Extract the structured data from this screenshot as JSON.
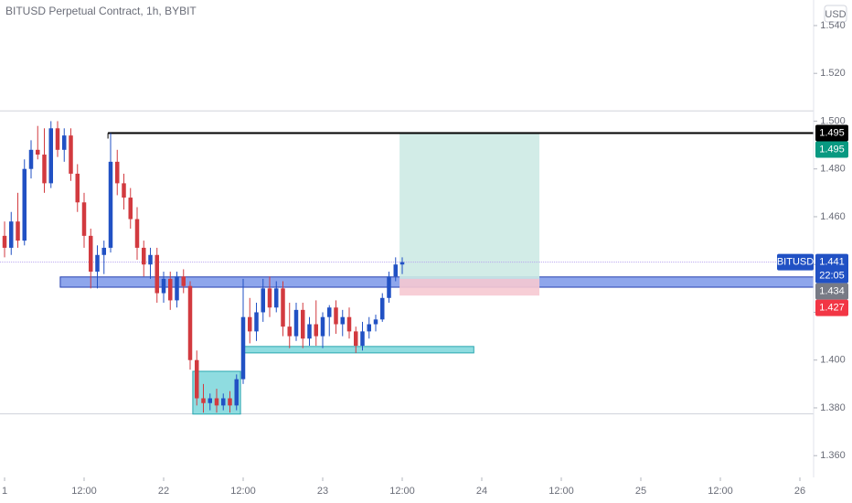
{
  "chart_data": {
    "type": "candlestick",
    "title": "BITUSD Perpetual Contract, 1h, BYBIT",
    "currency": "USD",
    "up_color": "#2151c4",
    "down_color": "#d23a3f",
    "x": [
      0,
      1,
      2,
      3,
      4,
      5,
      6,
      7,
      8,
      9,
      10,
      11,
      12,
      13,
      14,
      15,
      16,
      17,
      18,
      19,
      20,
      21,
      22,
      23,
      24,
      25,
      26,
      27,
      28,
      29,
      30,
      31,
      32,
      33,
      34,
      35,
      36,
      37,
      38,
      39,
      40,
      41,
      42,
      43,
      44,
      45,
      46,
      47,
      48,
      49,
      50,
      51,
      52,
      53,
      54,
      55,
      56,
      57,
      58,
      59,
      60
    ],
    "open": [
      1.452,
      1.447,
      1.458,
      1.45,
      1.48,
      1.488,
      1.486,
      1.474,
      1.497,
      1.488,
      1.494,
      1.478,
      1.466,
      1.452,
      1.437,
      1.444,
      1.447,
      1.483,
      1.474,
      1.468,
      1.459,
      1.447,
      1.44,
      1.444,
      1.428,
      1.434,
      1.425,
      1.435,
      1.431,
      1.4,
      1.384,
      1.382,
      1.384,
      1.381,
      1.384,
      1.381,
      1.392,
      1.418,
      1.412,
      1.42,
      1.43,
      1.422,
      1.43,
      1.414,
      1.41,
      1.421,
      1.409,
      1.415,
      1.41,
      1.418,
      1.422,
      1.415,
      1.418,
      1.412,
      1.406,
      1.412,
      1.415,
      1.417,
      1.426,
      1.435,
      1.44
    ],
    "high": [
      1.458,
      1.462,
      1.47,
      1.484,
      1.492,
      1.498,
      1.497,
      1.5,
      1.5,
      1.497,
      1.497,
      1.482,
      1.47,
      1.455,
      1.448,
      1.45,
      1.495,
      1.488,
      1.478,
      1.472,
      1.464,
      1.45,
      1.447,
      1.447,
      1.437,
      1.437,
      1.437,
      1.438,
      1.433,
      1.404,
      1.39,
      1.386,
      1.388,
      1.386,
      1.387,
      1.394,
      1.434,
      1.426,
      1.424,
      1.434,
      1.435,
      1.433,
      1.433,
      1.424,
      1.424,
      1.424,
      1.418,
      1.425,
      1.42,
      1.423,
      1.425,
      1.421,
      1.422,
      1.414,
      1.416,
      1.418,
      1.419,
      1.428,
      1.437,
      1.443,
      1.443
    ],
    "low": [
      1.443,
      1.444,
      1.447,
      1.448,
      1.476,
      1.484,
      1.47,
      1.472,
      1.485,
      1.483,
      1.475,
      1.462,
      1.447,
      1.43,
      1.43,
      1.436,
      1.445,
      1.469,
      1.463,
      1.455,
      1.442,
      1.435,
      1.434,
      1.424,
      1.424,
      1.421,
      1.422,
      1.428,
      1.396,
      1.381,
      1.378,
      1.379,
      1.378,
      1.379,
      1.378,
      1.379,
      1.39,
      1.407,
      1.408,
      1.416,
      1.418,
      1.42,
      1.41,
      1.405,
      1.408,
      1.405,
      1.406,
      1.406,
      1.405,
      1.41,
      1.411,
      1.41,
      1.409,
      1.403,
      1.404,
      1.409,
      1.412,
      1.416,
      1.424,
      1.433,
      1.436
    ],
    "close": [
      1.447,
      1.458,
      1.45,
      1.48,
      1.488,
      1.486,
      1.474,
      1.497,
      1.488,
      1.494,
      1.478,
      1.466,
      1.452,
      1.437,
      1.444,
      1.447,
      1.483,
      1.474,
      1.468,
      1.459,
      1.447,
      1.44,
      1.444,
      1.428,
      1.434,
      1.425,
      1.435,
      1.431,
      1.4,
      1.384,
      1.382,
      1.384,
      1.381,
      1.384,
      1.381,
      1.392,
      1.418,
      1.412,
      1.42,
      1.43,
      1.422,
      1.43,
      1.414,
      1.41,
      1.421,
      1.409,
      1.415,
      1.41,
      1.418,
      1.422,
      1.415,
      1.418,
      1.412,
      1.406,
      1.412,
      1.415,
      1.417,
      1.426,
      1.435,
      1.44,
      1.441
    ],
    "xlim": [
      -0.69,
      122.07
    ],
    "ylim": [
      1.3509,
      1.5507
    ],
    "xticks": [
      {
        "value": 0,
        "label": "1"
      },
      {
        "value": 12,
        "label": "12:00"
      },
      {
        "value": 24,
        "label": "22"
      },
      {
        "value": 36,
        "label": "12:00"
      },
      {
        "value": 48,
        "label": "23"
      },
      {
        "value": 60,
        "label": "12:00"
      },
      {
        "value": 72,
        "label": "24"
      },
      {
        "value": 84,
        "label": "12:00"
      },
      {
        "value": 96,
        "label": "25"
      },
      {
        "value": 108,
        "label": "12:00"
      },
      {
        "value": 120,
        "label": "26"
      }
    ],
    "yticks": [
      {
        "value": 1.36,
        "label": "1.360"
      },
      {
        "value": 1.38,
        "label": "1.380"
      },
      {
        "value": 1.4,
        "label": "1.400"
      },
      {
        "value": 1.42,
        "label": "1.420"
      },
      {
        "value": 1.44,
        "label": "1.440"
      },
      {
        "value": 1.46,
        "label": "1.460"
      },
      {
        "value": 1.48,
        "label": "1.480"
      },
      {
        "value": 1.5,
        "label": "1.500"
      },
      {
        "value": 1.52,
        "label": "1.520"
      },
      {
        "value": 1.54,
        "label": "1.540"
      }
    ],
    "reference_lines": [
      1.5043,
      1.3775
    ],
    "levels": [
      {
        "value": 1.495,
        "start": 15.6,
        "color": "#000000"
      }
    ],
    "zones": [
      {
        "start": 8.4,
        "extend_right": true,
        "low": 1.4305,
        "high": 1.4348,
        "color": "#8ea6ec",
        "border": "#2540b0"
      },
      {
        "start": 36,
        "end": 70.8,
        "low": 1.403,
        "high": 1.4057,
        "color": "#8fdce0",
        "border": "#2aa7b0"
      },
      {
        "start": 28.4,
        "end": 35.6,
        "low": 1.3774,
        "high": 1.3953,
        "color": "#8fdce0",
        "border": "#2aa7b0"
      }
    ],
    "position": {
      "start": 59.6,
      "end": 80.7,
      "entry": 1.434,
      "target": 1.495,
      "stop": 1.427,
      "profit_color": "#cdeae4",
      "loss_color": "#f6c9d1"
    },
    "price_labels": [
      {
        "value": 1.495,
        "label": "1.495",
        "color": "#000000"
      },
      {
        "value": 1.495,
        "label": "1.495",
        "color": "#089981"
      },
      {
        "value": 1.441,
        "label": "1.441",
        "name": "BITUSD",
        "countdown": "22:05",
        "color": "#2151c4"
      },
      {
        "value": 1.434,
        "label": "1.434",
        "color": "#787b86"
      },
      {
        "value": 1.427,
        "label": "1.427",
        "color": "#f23645"
      }
    ]
  }
}
